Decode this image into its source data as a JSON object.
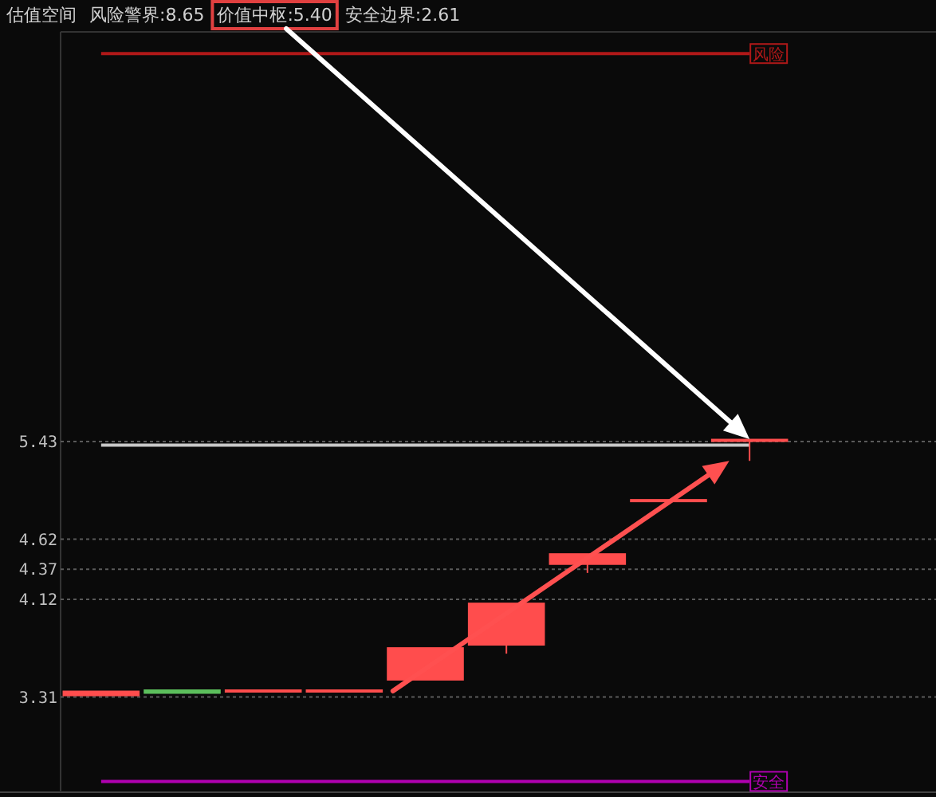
{
  "chart_data": {
    "type": "candlestick",
    "title": "估值空间",
    "annotations": [
      "风险警界:8.65",
      "价值中枢:5.40",
      "安全边界:2.61"
    ],
    "categories": [
      null,
      null,
      null,
      null,
      null,
      null,
      null,
      null,
      null
    ],
    "ohlc": [
      [
        3.33,
        3.35,
        3.33,
        3.35
      ],
      [
        3.36,
        3.37,
        3.34,
        3.35
      ],
      [
        3.36,
        3.37,
        3.35,
        3.36
      ],
      [
        3.36,
        3.37,
        3.35,
        3.36
      ],
      [
        3.46,
        3.71,
        3.46,
        3.71
      ],
      [
        3.75,
        4.08,
        3.67,
        4.08
      ],
      [
        4.42,
        4.49,
        4.34,
        4.49
      ],
      [
        4.94,
        4.94,
        4.94,
        4.94
      ],
      [
        5.44,
        5.45,
        5.27,
        5.44
      ]
    ],
    "colors": [
      "#ff4d4d",
      "#5cbf5c",
      "#ff4d4d",
      "#ff4d4d",
      "#ff4d4d",
      "#ff4d4d",
      "#ff4d4d",
      "#ff4d4d",
      "#ff4d4d"
    ],
    "ylim": [
      2.52,
      8.83
    ],
    "yticks": [
      5.43,
      4.62,
      4.37,
      4.12,
      3.31
    ],
    "grid": "y",
    "tick_labels": "y",
    "ref_lines": [
      {
        "axis": "y",
        "value": 8.65,
        "label": "风险",
        "color": "#b01818"
      },
      {
        "axis": "y",
        "value": 5.4,
        "label": null,
        "color": "#c8c8c8"
      },
      {
        "axis": "y",
        "value": 2.61,
        "label": "安全",
        "color": "#b000b0"
      }
    ]
  }
}
